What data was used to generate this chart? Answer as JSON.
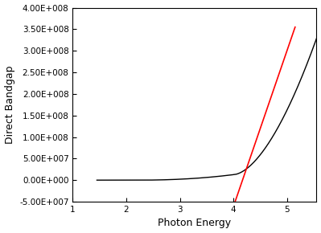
{
  "xlabel": "Photon Energy",
  "ylabel": "Direct Bandgap",
  "xlim": [
    1,
    5.55
  ],
  "ylim": [
    -50000000.0,
    400000000.0
  ],
  "xticks": [
    1,
    2,
    3,
    4,
    5
  ],
  "yticks": [
    -50000000.0,
    0.0,
    50000000.0,
    100000000.0,
    150000000.0,
    200000000.0,
    250000000.0,
    300000000.0,
    350000000.0,
    400000000.0
  ],
  "curve_color": "#000000",
  "line_color": "#ff0000",
  "background_color": "#ffffff",
  "line_x": [
    4.03,
    5.15
  ],
  "line_y": [
    -50000000.0,
    355000000.0
  ],
  "fig_width": 3.99,
  "fig_height": 2.9,
  "dpi": 100
}
